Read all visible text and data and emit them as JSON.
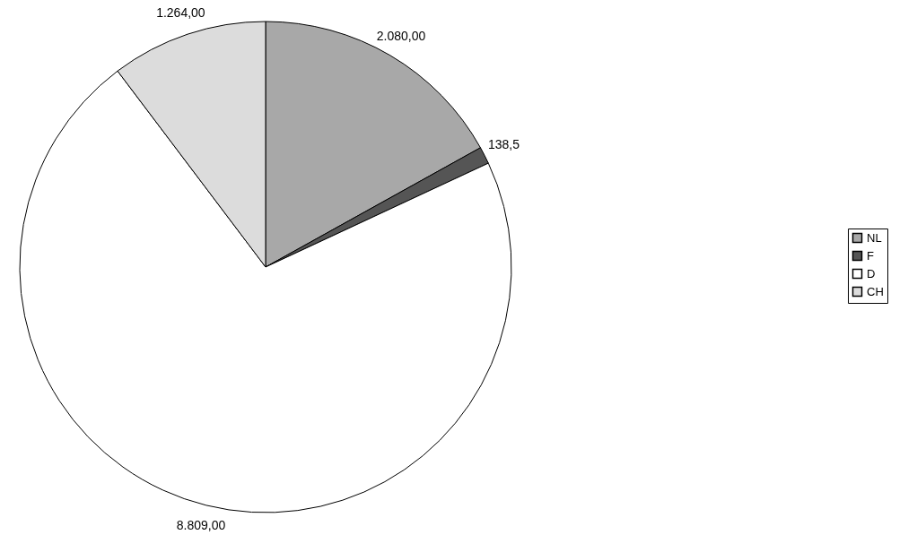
{
  "chart_data": {
    "type": "pie",
    "categories": [
      "NL",
      "F",
      "D",
      "CH"
    ],
    "values": [
      2080,
      138.5,
      8809,
      1264
    ],
    "value_labels": [
      "2.080,00",
      "138,5",
      "8.809,00",
      "1.264,00"
    ],
    "colors": [
      "#a8a8a8",
      "#555555",
      "#ffffff",
      "#dcdcdc"
    ],
    "legend": "right"
  }
}
